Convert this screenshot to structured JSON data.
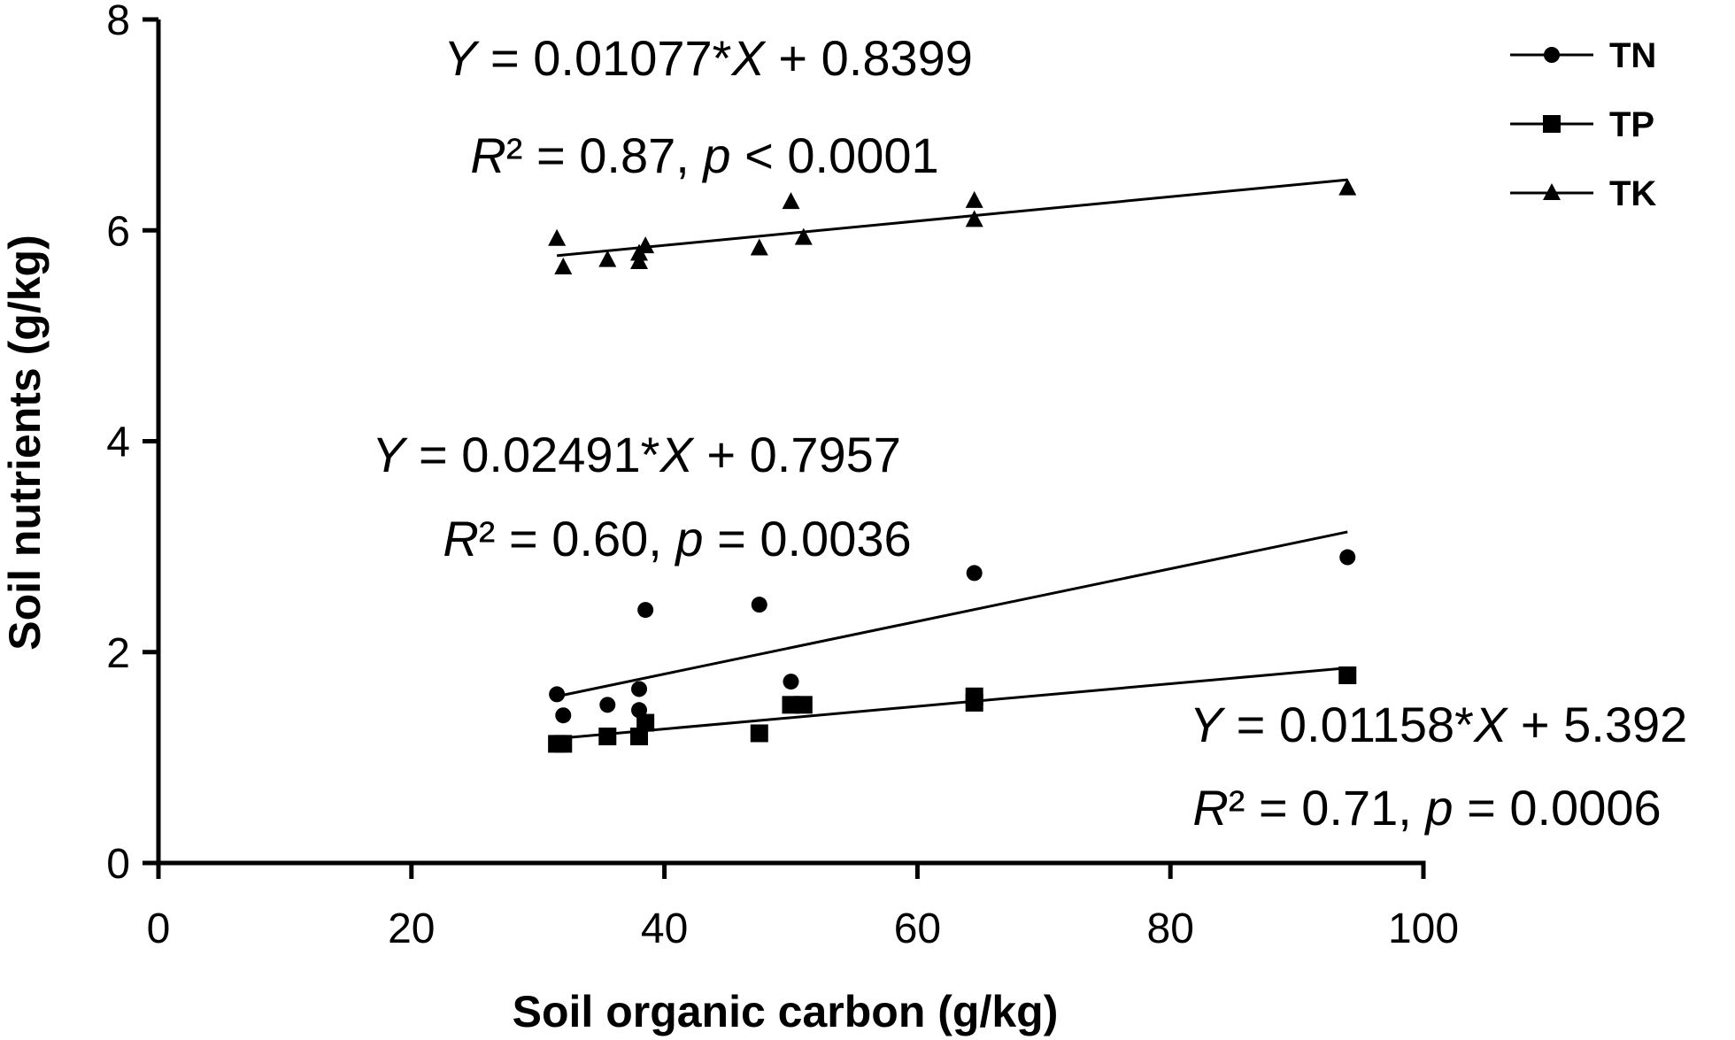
{
  "chart_data": {
    "type": "scatter",
    "x_label": "Soil organic carbon (g/kg)",
    "y_label": "Soil nutrients (g/kg)",
    "xlim": [
      0,
      100
    ],
    "xticks": [
      0,
      20,
      40,
      60,
      80,
      100
    ],
    "ylim": [
      0,
      8
    ],
    "yticks": [
      0,
      2,
      4,
      6,
      8
    ],
    "legend": "top-right",
    "series": [
      {
        "name": "TN",
        "marker": "circle",
        "color": "#000000",
        "x": [
          31.5,
          32,
          35.5,
          38,
          38,
          38.5,
          47.5,
          50,
          64.5,
          94
        ],
        "values": [
          1.6,
          1.4,
          1.5,
          1.65,
          1.45,
          2.4,
          2.45,
          1.72,
          2.75,
          2.9
        ],
        "fit": {
          "x": [
            31.5,
            94
          ],
          "values": [
            1.58,
            3.14
          ]
        }
      },
      {
        "name": "TP",
        "marker": "square",
        "color": "#000000",
        "x": [
          31.5,
          32,
          35.5,
          38,
          38.5,
          47.5,
          50,
          51,
          64.5,
          64.5,
          94
        ],
        "values": [
          1.13,
          1.13,
          1.2,
          1.2,
          1.33,
          1.23,
          1.5,
          1.5,
          1.52,
          1.58,
          1.78
        ],
        "fit": {
          "x": [
            31.5,
            94
          ],
          "values": [
            1.18,
            1.85
          ]
        }
      },
      {
        "name": "TK",
        "marker": "triangle",
        "color": "#000000",
        "x": [
          31.5,
          32,
          35.5,
          38,
          38,
          38.5,
          47.5,
          50,
          51,
          64.5,
          64.5,
          94
        ],
        "values": [
          5.92,
          5.65,
          5.72,
          5.7,
          5.78,
          5.85,
          5.83,
          6.27,
          5.93,
          6.1,
          6.28,
          6.4
        ],
        "fit": {
          "x": [
            31.5,
            94
          ],
          "values": [
            5.76,
            6.48
          ]
        }
      }
    ],
    "annotations": [
      "Y = 0.01077*X + 0.8399",
      "R² = 0.87, p < 0.0001",
      "Y = 0.02491*X + 0.7957",
      "R² = 0.60, p = 0.0036",
      "Y = 0.01158*X + 5.392",
      "R² = 0.71, p = 0.0006"
    ]
  }
}
